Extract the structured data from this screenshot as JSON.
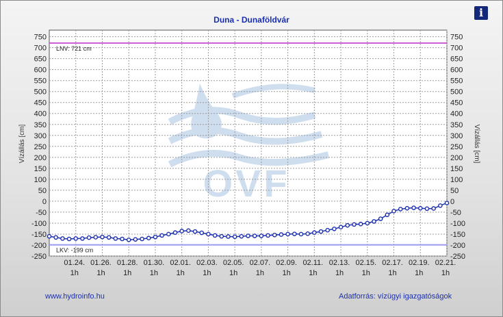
{
  "title": "Duna - Dunaföldvár",
  "info_icon": "i",
  "footer": {
    "link": "www.hydroinfo.hu",
    "source": "Adatforrás: vízügyi igazgatóságok"
  },
  "colors": {
    "series": "#1a2fb0",
    "lnv_line": "#c85ad2",
    "lkv_line": "#9a9af0",
    "grid": "#9a9a9a",
    "title": "#1a2fb0"
  },
  "chart_data": {
    "type": "line",
    "ylabel_left": "Vízállás [cm]",
    "ylabel_right": "Vízállás [cm]",
    "ylim": [
      -250,
      780
    ],
    "yticks": [
      750,
      700,
      650,
      600,
      550,
      500,
      450,
      400,
      350,
      300,
      250,
      200,
      150,
      100,
      50,
      0,
      -50,
      -100,
      -150,
      -200,
      -250
    ],
    "xlim_days": [
      0,
      30
    ],
    "xticks": [
      {
        "day": 2,
        "date": "01.24.",
        "hour": "1h"
      },
      {
        "day": 4,
        "date": "01.26.",
        "hour": "1h"
      },
      {
        "day": 6,
        "date": "01.28.",
        "hour": "1h"
      },
      {
        "day": 8,
        "date": "01.30.",
        "hour": "1h"
      },
      {
        "day": 10,
        "date": "02.01.",
        "hour": "1h"
      },
      {
        "day": 12,
        "date": "02.03.",
        "hour": "1h"
      },
      {
        "day": 14,
        "date": "02.05.",
        "hour": "1h"
      },
      {
        "day": 16,
        "date": "02.07.",
        "hour": "1h"
      },
      {
        "day": 18,
        "date": "02.09.",
        "hour": "1h"
      },
      {
        "day": 20,
        "date": "02.11.",
        "hour": "1h"
      },
      {
        "day": 22,
        "date": "02.13.",
        "hour": "1h"
      },
      {
        "day": 24,
        "date": "02.15.",
        "hour": "1h"
      },
      {
        "day": 26,
        "date": "02.17.",
        "hour": "1h"
      },
      {
        "day": 28,
        "date": "02.19.",
        "hour": "1h"
      },
      {
        "day": 30,
        "date": "02.21.",
        "hour": "1h"
      }
    ],
    "reference_lines": [
      {
        "label": "LNV: 721 cm",
        "value": 721
      },
      {
        "label": "LKV: -199 cm",
        "value": -199
      }
    ],
    "grid": true,
    "watermark": "OVF",
    "series": [
      {
        "x_days": [
          0,
          0.5,
          1,
          1.5,
          2,
          2.5,
          3,
          3.5,
          4,
          4.5,
          5,
          5.5,
          6,
          6.5,
          7,
          7.5,
          8,
          8.5,
          9,
          9.5,
          10,
          10.5,
          11,
          11.5,
          12,
          12.5,
          13,
          13.5,
          14,
          14.5,
          15,
          15.5,
          16,
          16.5,
          17,
          17.5,
          18,
          18.5,
          19,
          19.5,
          20,
          20.5,
          21,
          21.5,
          22,
          22.5,
          23,
          23.5,
          24,
          24.5,
          25,
          25.5,
          26,
          26.5,
          27,
          27.5,
          28,
          28.5,
          29,
          29.5,
          30
        ],
        "values": [
          -160,
          -165,
          -170,
          -172,
          -170,
          -170,
          -166,
          -164,
          -163,
          -165,
          -170,
          -172,
          -176,
          -174,
          -172,
          -168,
          -163,
          -156,
          -150,
          -143,
          -136,
          -134,
          -138,
          -144,
          -150,
          -156,
          -160,
          -161,
          -162,
          -160,
          -158,
          -158,
          -158,
          -156,
          -154,
          -152,
          -150,
          -149,
          -150,
          -148,
          -143,
          -138,
          -132,
          -126,
          -118,
          -110,
          -106,
          -104,
          -100,
          -92,
          -80,
          -62,
          -45,
          -36,
          -32,
          -30,
          -32,
          -34,
          -33,
          -20,
          -8
        ]
      }
    ]
  }
}
